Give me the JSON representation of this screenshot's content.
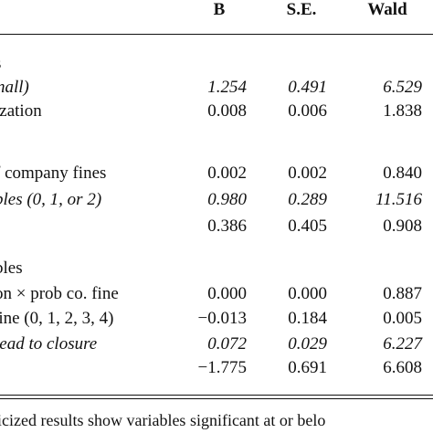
{
  "table": {
    "headers": [
      "B",
      "S.E.",
      "Wald"
    ],
    "rows": [
      {
        "label": "s",
        "values": [
          "",
          "",
          ""
        ],
        "italic": false
      },
      {
        "label": "nall)",
        "values": [
          "1.254",
          "0.491",
          "6.529"
        ],
        "italic": true
      },
      {
        "label": "ization",
        "values": [
          "0.008",
          "0.006",
          "1.838"
        ],
        "italic": false
      },
      {
        "label": "",
        "values": [
          "",
          "",
          ""
        ],
        "italic": false
      },
      {
        "label": "f company fines",
        "values": [
          "0.002",
          "0.002",
          "0.840"
        ],
        "italic": false
      },
      {
        "label": "bles (0, 1, or 2)",
        "values": [
          "0.980",
          "0.289",
          "11.516"
        ],
        "italic": true
      },
      {
        "label": "",
        "values": [
          "0.386",
          "0.405",
          "0.908"
        ],
        "italic": false
      },
      {
        "label": "",
        "values": [
          "",
          "",
          ""
        ],
        "italic": false
      },
      {
        "label": "bles",
        "values": [
          "",
          "",
          ""
        ],
        "italic": false
      },
      {
        "label": "on × prob co. fine",
        "values": [
          "0.000",
          "0.000",
          "0.887"
        ],
        "italic": false
      },
      {
        "label": "fine (0, 1, 2, 3, 4)",
        "values": [
          "−0.013",
          "0.184",
          "0.005"
        ],
        "italic": false
      },
      {
        "label": "lead to closure",
        "values": [
          "0.072",
          "0.029",
          "6.227"
        ],
        "italic": true
      },
      {
        "label": "",
        "values": [
          "−1.775",
          "0.691",
          "6.608"
        ],
        "italic": false
      }
    ]
  },
  "footnote": "licized results show variables significant at or belo"
}
